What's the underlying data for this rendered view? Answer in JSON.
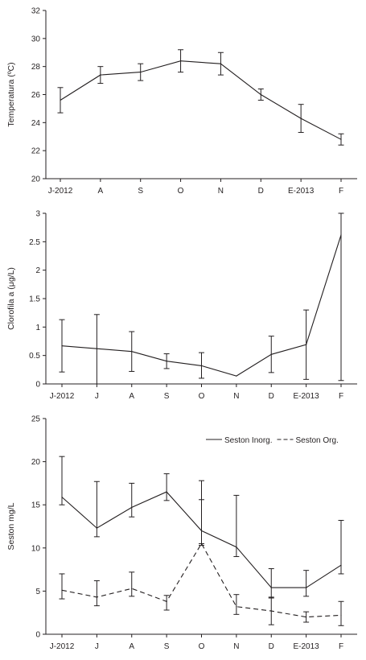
{
  "chart_data": [
    {
      "type": "line",
      "ylabel": "Temperatura (ºC)",
      "ylim": [
        20,
        32
      ],
      "yticks": [
        20,
        22,
        24,
        26,
        28,
        30,
        32
      ],
      "categories": [
        "J-2012",
        "A",
        "S",
        "O",
        "N",
        "D",
        "E-2013",
        "F"
      ],
      "grid": false,
      "series": [
        {
          "style": "solid",
          "values": [
            25.6,
            27.4,
            27.6,
            28.4,
            28.2,
            26.0,
            24.3,
            22.8
          ],
          "error_low": [
            24.7,
            26.8,
            27.0,
            27.6,
            27.4,
            25.6,
            23.3,
            22.4
          ],
          "error_high": [
            26.5,
            28.0,
            28.2,
            29.2,
            29.0,
            26.4,
            25.3,
            23.2
          ]
        }
      ]
    },
    {
      "type": "line",
      "ylabel": "Clorofila a (μg/L)",
      "ylim": [
        0,
        3
      ],
      "yticks": [
        0,
        0.5,
        1,
        1.5,
        2,
        2.5,
        3
      ],
      "ytick_labels": [
        "0",
        "0.5",
        "1",
        "1.5",
        "2",
        "2.5",
        "3"
      ],
      "categories": [
        "J-2012",
        "J",
        "A",
        "S",
        "O",
        "N",
        "D",
        "E-2013",
        "F"
      ],
      "grid": false,
      "series": [
        {
          "style": "solid",
          "values": [
            0.67,
            0.62,
            0.57,
            0.4,
            0.32,
            0.14,
            0.52,
            0.69,
            2.62
          ],
          "error_low": [
            0.21,
            0.0,
            0.22,
            0.27,
            0.1,
            0.14,
            0.2,
            0.08,
            0.06
          ],
          "error_high": [
            1.13,
            1.22,
            0.92,
            0.53,
            0.55,
            0.14,
            0.84,
            1.3,
            3.0
          ]
        }
      ]
    },
    {
      "type": "line",
      "ylabel": "Seston mg/L",
      "ylim": [
        0,
        25
      ],
      "yticks": [
        0,
        5,
        10,
        15,
        20,
        25
      ],
      "categories": [
        "J-2012",
        "J",
        "A",
        "S",
        "O",
        "N",
        "D",
        "E-2013",
        "F"
      ],
      "grid": false,
      "legend_position": "top-right",
      "series": [
        {
          "name": "Seston Inorg.",
          "style": "solid",
          "values": [
            15.9,
            12.3,
            14.7,
            16.5,
            12.0,
            10.1,
            5.4,
            5.4,
            8.0
          ],
          "error_low": [
            15.0,
            11.3,
            13.6,
            15.5,
            10.3,
            9.0,
            4.2,
            4.4,
            7.0
          ],
          "error_high": [
            20.6,
            17.7,
            17.5,
            18.6,
            17.8,
            16.1,
            7.6,
            7.4,
            13.2
          ]
        },
        {
          "name": "Seston Org.",
          "style": "dashed",
          "values": [
            5.1,
            4.3,
            5.3,
            3.8,
            10.5,
            3.2,
            2.7,
            2.0,
            2.2
          ],
          "error_low": [
            4.1,
            3.3,
            4.4,
            2.8,
            10.5,
            2.3,
            1.1,
            1.4,
            1.0
          ],
          "error_high": [
            7.0,
            6.2,
            7.2,
            4.5,
            15.6,
            4.6,
            4.3,
            2.6,
            3.8
          ]
        }
      ]
    }
  ]
}
